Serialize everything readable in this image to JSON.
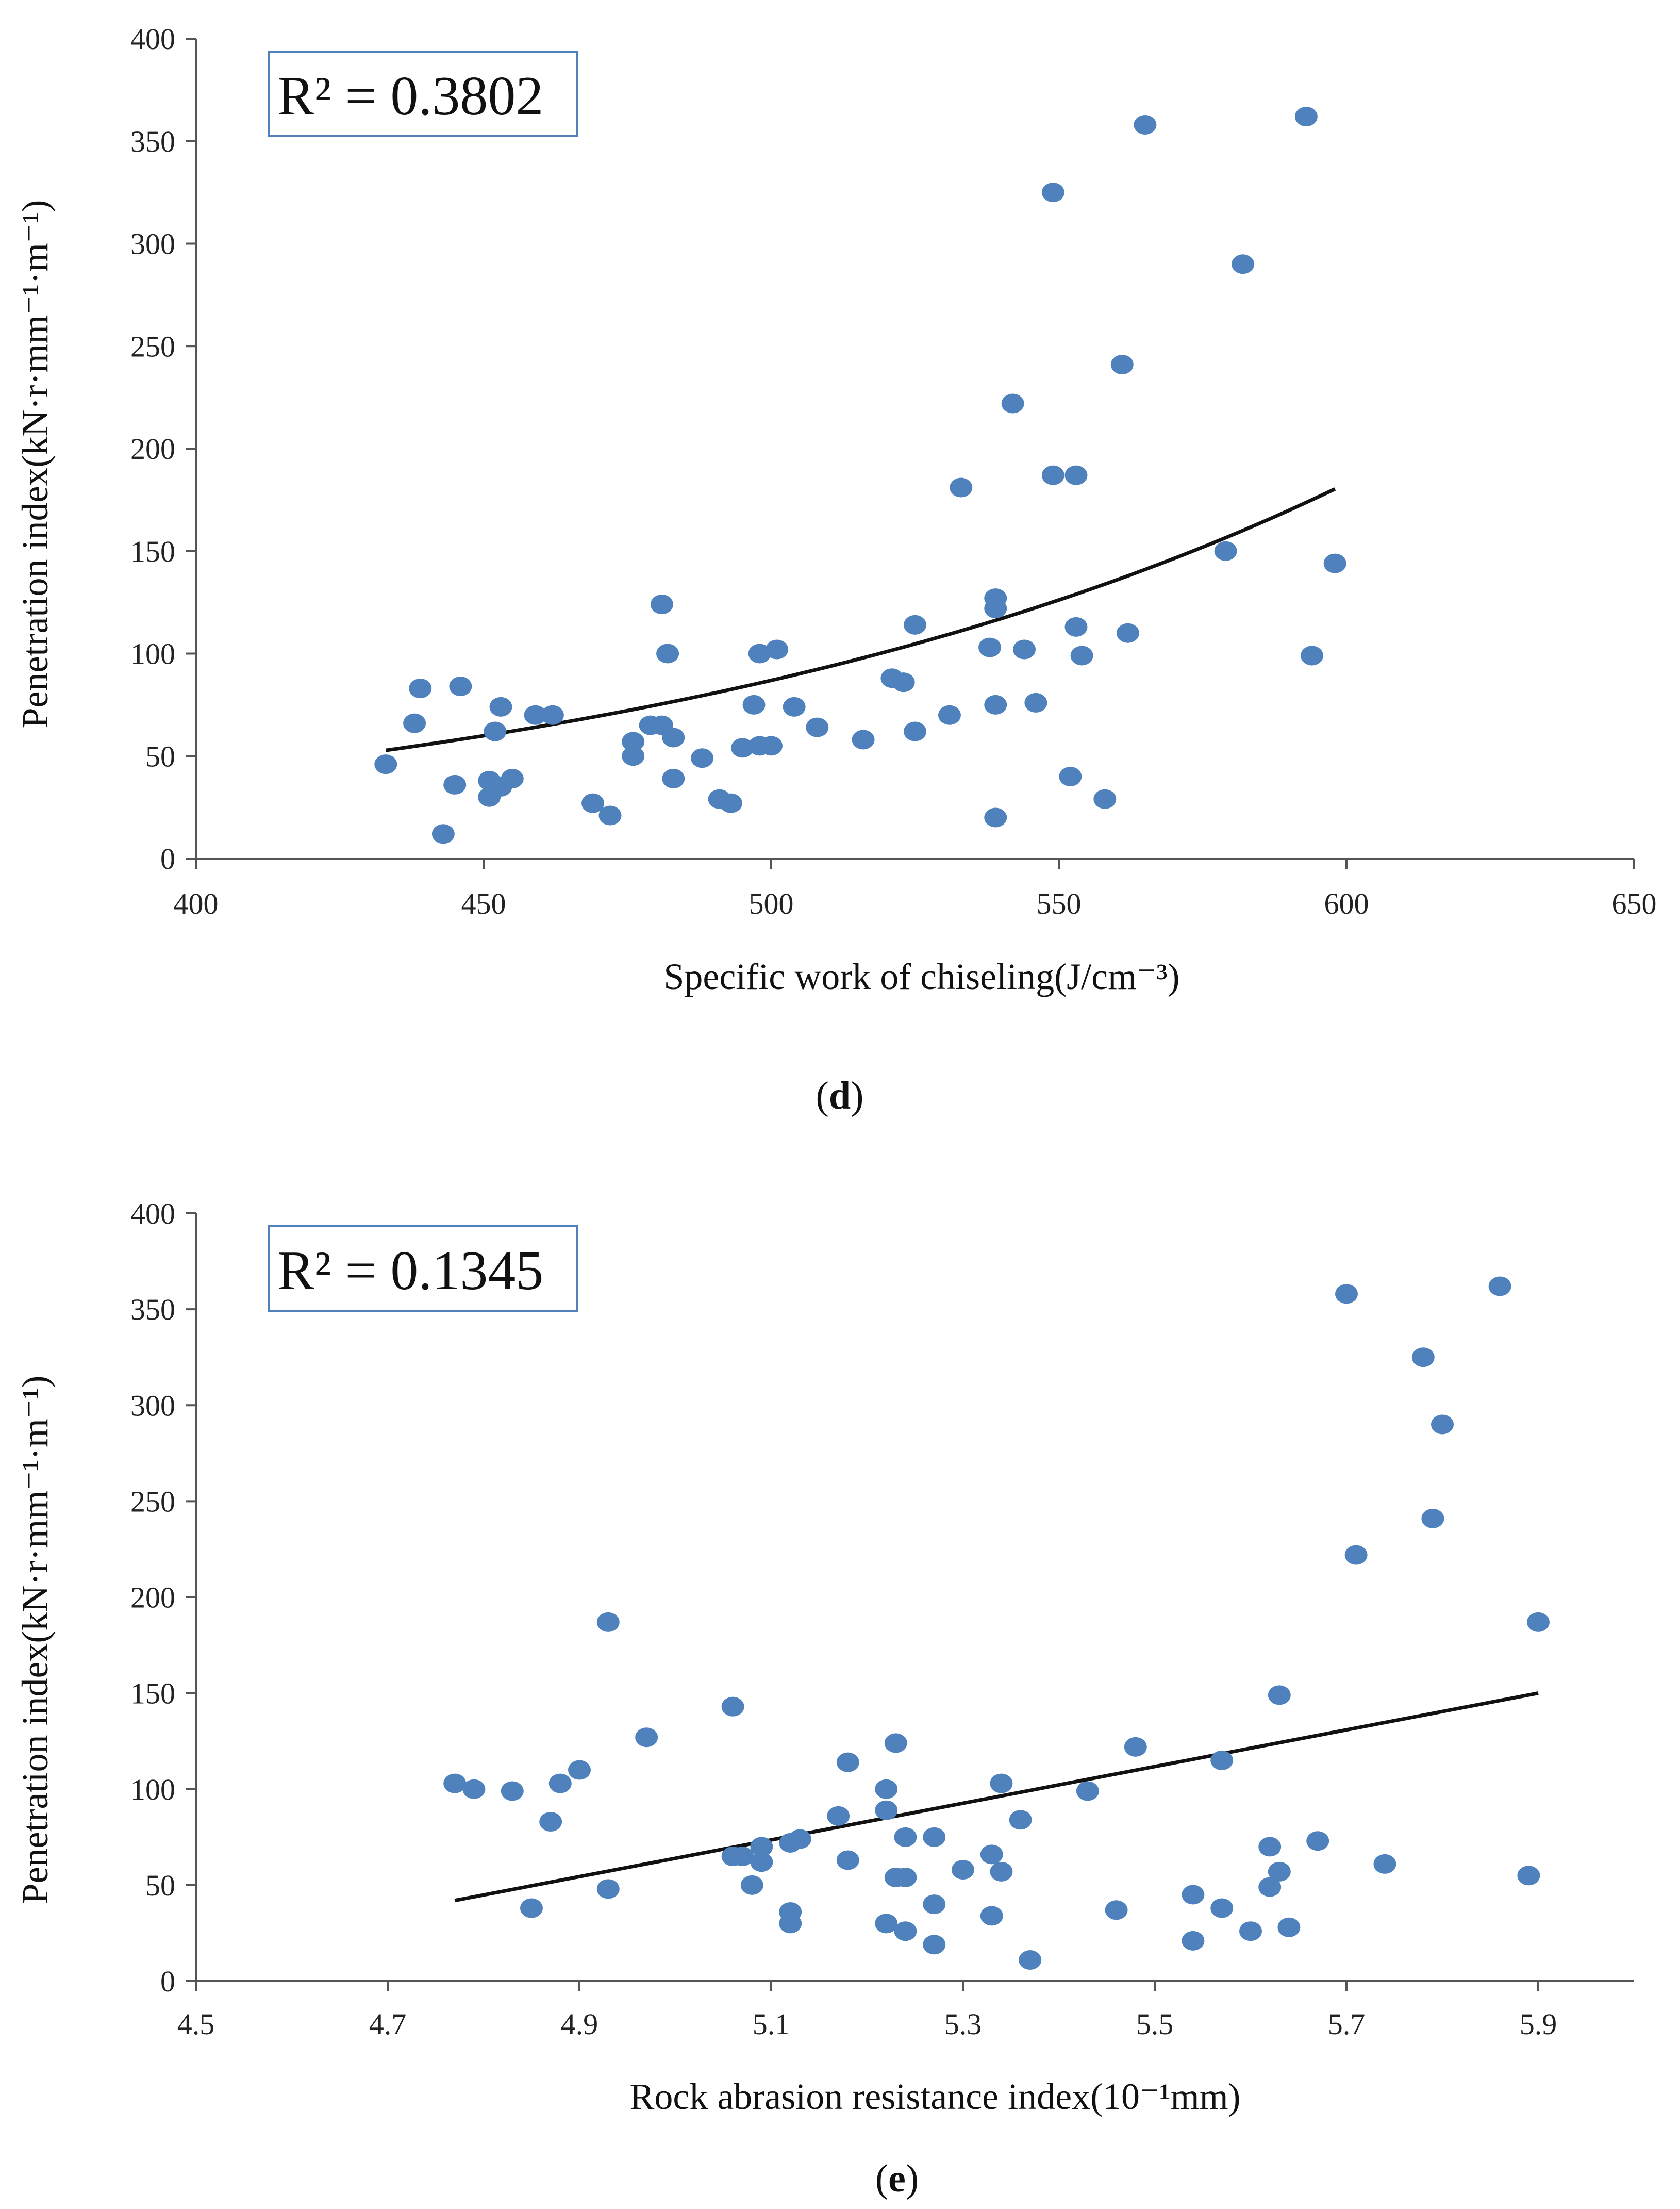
{
  "chart_data": [
    {
      "type": "scatter",
      "caption": "d",
      "r2_label": "R² = 0.3802",
      "xlabel": "Specific work of chiseling(J/cm⁻³)",
      "ylabel": "Penetration index(kN·r·mm⁻¹·m⁻¹)",
      "xlim": [
        400,
        650
      ],
      "ylim": [
        0,
        400
      ],
      "xticks": [
        400,
        450,
        500,
        550,
        600,
        650
      ],
      "yticks": [
        0,
        50,
        100,
        150,
        200,
        250,
        300,
        350,
        400
      ],
      "marker_color": "#4f81bd",
      "points": [
        [
          433,
          46
        ],
        [
          438,
          66
        ],
        [
          439,
          83
        ],
        [
          443,
          12
        ],
        [
          445,
          36
        ],
        [
          446,
          84
        ],
        [
          451,
          38
        ],
        [
          451,
          30
        ],
        [
          452,
          62
        ],
        [
          453,
          74
        ],
        [
          453,
          35
        ],
        [
          455,
          39
        ],
        [
          459,
          70
        ],
        [
          462,
          70
        ],
        [
          469,
          27
        ],
        [
          472,
          21
        ],
        [
          476,
          57
        ],
        [
          476,
          50
        ],
        [
          479,
          65
        ],
        [
          481,
          124
        ],
        [
          481,
          65
        ],
        [
          482,
          100
        ],
        [
          483,
          59
        ],
        [
          483,
          39
        ],
        [
          488,
          49
        ],
        [
          491,
          29
        ],
        [
          493,
          27
        ],
        [
          495,
          54
        ],
        [
          497,
          75
        ],
        [
          498,
          100
        ],
        [
          498,
          55
        ],
        [
          500,
          55
        ],
        [
          501,
          102
        ],
        [
          504,
          74
        ],
        [
          508,
          64
        ],
        [
          516,
          58
        ],
        [
          521,
          88
        ],
        [
          523,
          86
        ],
        [
          525,
          114
        ],
        [
          525,
          62
        ],
        [
          531,
          70
        ],
        [
          533,
          181
        ],
        [
          538,
          103
        ],
        [
          539,
          75
        ],
        [
          539,
          20
        ],
        [
          539,
          127
        ],
        [
          539,
          122
        ],
        [
          542,
          222
        ],
        [
          544,
          102
        ],
        [
          546,
          76
        ],
        [
          549,
          325
        ],
        [
          549,
          187
        ],
        [
          552,
          40
        ],
        [
          553,
          187
        ],
        [
          553,
          113
        ],
        [
          554,
          99
        ],
        [
          558,
          29
        ],
        [
          561,
          241
        ],
        [
          562,
          110
        ],
        [
          565,
          358
        ],
        [
          579,
          150
        ],
        [
          582,
          290
        ],
        [
          593,
          362
        ],
        [
          594,
          99
        ],
        [
          598,
          144
        ]
      ],
      "trend": {
        "type": "exponential",
        "a": 2.1,
        "b": 0.007446,
        "x_range": [
          433,
          598
        ]
      }
    },
    {
      "type": "scatter",
      "caption": "e",
      "r2_label": "R² = 0.1345",
      "xlabel": "Rock abrasion resistance index(10⁻¹mm)",
      "ylabel": "Penetration index(kN·r·mm⁻¹·m⁻¹)",
      "xlim": [
        4.5,
        6.0
      ],
      "ylim": [
        0,
        400
      ],
      "xticks": [
        4.5,
        4.7,
        4.9,
        5.1,
        5.3,
        5.5,
        5.7,
        5.9
      ],
      "yticks": [
        0,
        50,
        100,
        150,
        200,
        250,
        300,
        350,
        400
      ],
      "marker_color": "#4f81bd",
      "points": [
        [
          4.77,
          103
        ],
        [
          4.79,
          100
        ],
        [
          4.83,
          99
        ],
        [
          4.85,
          38
        ],
        [
          4.87,
          83
        ],
        [
          4.88,
          103
        ],
        [
          4.9,
          110
        ],
        [
          4.93,
          187
        ],
        [
          4.93,
          48
        ],
        [
          4.97,
          127
        ],
        [
          5.06,
          143
        ],
        [
          5.06,
          65
        ],
        [
          5.07,
          65
        ],
        [
          5.08,
          50
        ],
        [
          5.09,
          70
        ],
        [
          5.09,
          62
        ],
        [
          5.12,
          72
        ],
        [
          5.12,
          30
        ],
        [
          5.12,
          36
        ],
        [
          5.13,
          74
        ],
        [
          5.17,
          86
        ],
        [
          5.18,
          114
        ],
        [
          5.18,
          63
        ],
        [
          5.22,
          100
        ],
        [
          5.22,
          89
        ],
        [
          5.22,
          30
        ],
        [
          5.23,
          124
        ],
        [
          5.23,
          54
        ],
        [
          5.24,
          54
        ],
        [
          5.24,
          75
        ],
        [
          5.24,
          26
        ],
        [
          5.27,
          75
        ],
        [
          5.27,
          40
        ],
        [
          5.27,
          19
        ],
        [
          5.3,
          58
        ],
        [
          5.33,
          66
        ],
        [
          5.33,
          34
        ],
        [
          5.34,
          103
        ],
        [
          5.34,
          57
        ],
        [
          5.36,
          84
        ],
        [
          5.37,
          11
        ],
        [
          5.43,
          99
        ],
        [
          5.46,
          37
        ],
        [
          5.48,
          122
        ],
        [
          5.54,
          45
        ],
        [
          5.54,
          21
        ],
        [
          5.57,
          115
        ],
        [
          5.57,
          38
        ],
        [
          5.6,
          26
        ],
        [
          5.62,
          70
        ],
        [
          5.62,
          49
        ],
        [
          5.63,
          57
        ],
        [
          5.63,
          149
        ],
        [
          5.64,
          28
        ],
        [
          5.67,
          73
        ],
        [
          5.7,
          358
        ],
        [
          5.71,
          222
        ],
        [
          5.74,
          61
        ],
        [
          5.78,
          325
        ],
        [
          5.79,
          241
        ],
        [
          5.8,
          290
        ],
        [
          5.86,
          362
        ],
        [
          5.89,
          55
        ],
        [
          5.9,
          187
        ]
      ],
      "trend": {
        "type": "linear",
        "points": [
          [
            4.77,
            42
          ],
          [
            5.9,
            150
          ]
        ]
      }
    }
  ]
}
